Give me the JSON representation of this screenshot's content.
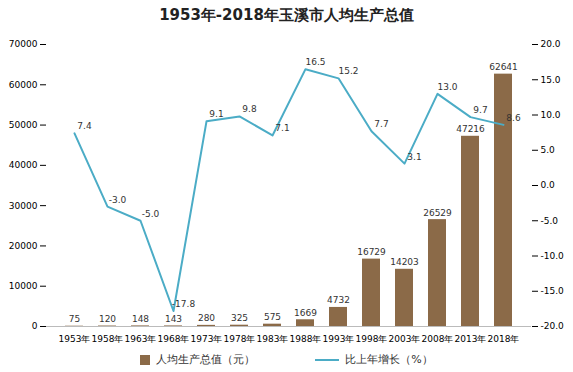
{
  "chart_data": {
    "type": "bar",
    "title": "1953年-2018年玉溪市人均生产总值",
    "categories": [
      "1953年",
      "1958年",
      "1963年",
      "1968年",
      "1973年",
      "1978年",
      "1983年",
      "1988年",
      "1993年",
      "1998年",
      "2003年",
      "2008年",
      "2013年",
      "2018年"
    ],
    "series": [
      {
        "name": "人均生产总值（元）",
        "type": "bar",
        "color": "#8b6a48",
        "values": [
          75,
          120,
          148,
          143,
          280,
          325,
          575,
          1669,
          4732,
          16729,
          14203,
          26529,
          47216,
          62641
        ]
      },
      {
        "name": "比上年增长（%）",
        "type": "line",
        "axis": "y2",
        "color": "#4bacc6",
        "marker": "none",
        "line_style": "solid",
        "values": [
          7.4,
          -3.0,
          -5.0,
          -17.8,
          9.1,
          9.8,
          7.1,
          16.5,
          15.2,
          7.7,
          3.1,
          13.0,
          9.7,
          8.6
        ],
        "value_labels": [
          "7.4",
          "-3.0",
          "-5.0",
          "-17.8",
          "9.1",
          "9.8",
          "7.1",
          "16.5",
          "15.2",
          "7.7",
          "3.1",
          "13.0",
          "9.7",
          "8.6"
        ]
      }
    ],
    "ylim": [
      0,
      70000
    ],
    "yticks": [
      0,
      10000,
      20000,
      30000,
      40000,
      50000,
      60000,
      70000
    ],
    "y2lim": [
      -20,
      20
    ],
    "y2ticks": [
      {
        "value": -20,
        "label": "-20.0"
      },
      {
        "value": -15,
        "label": "-15.0"
      },
      {
        "value": -10,
        "label": "-10.0"
      },
      {
        "value": -5,
        "label": "-5.0"
      },
      {
        "value": 0,
        "label": "0.0"
      },
      {
        "value": 5,
        "label": "5.0"
      },
      {
        "value": 10,
        "label": "10.0"
      },
      {
        "value": 15,
        "label": "15.0"
      },
      {
        "value": 20,
        "label": "20.0"
      }
    ],
    "data_labels": true,
    "grid": false,
    "legend": "bottom"
  }
}
